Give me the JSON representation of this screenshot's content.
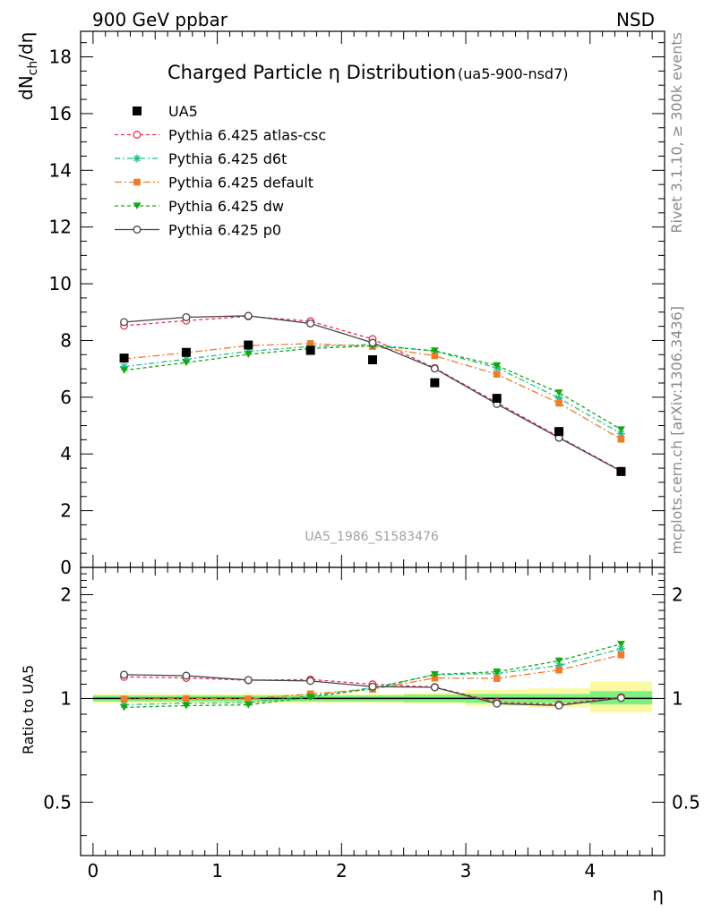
{
  "header": {
    "left": "900 GeV ppbar",
    "right": "NSD"
  },
  "side_text": {
    "top": "Rivet 3.1.10, ≥ 300k events",
    "bottom": "mcplots.cern.ch [arXiv:1306.3436]"
  },
  "watermark": "UA5_1986_S1583476",
  "chart_data": [
    {
      "type": "line",
      "title": "Charged Particle η Distribution",
      "subtitle": "(ua5-900-nsd7)",
      "ylabel_main": "dN",
      "ylabel_sub": "ch",
      "ylabel_tail": "/dη",
      "xlim": [
        -0.1,
        4.6
      ],
      "ylim": [
        0,
        18.9
      ],
      "y_ticks": [
        0,
        2,
        4,
        6,
        8,
        10,
        12,
        14,
        16,
        18
      ],
      "x": [
        0.25,
        0.75,
        1.25,
        1.75,
        2.25,
        2.75,
        3.25,
        3.75,
        4.25
      ],
      "legend_position": "top-left",
      "series": [
        {
          "name": "UA5",
          "color": "#000000",
          "marker": "square",
          "dash": "none",
          "values": [
            7.38,
            7.58,
            7.84,
            7.65,
            7.32,
            6.51,
            5.96,
            4.79,
            3.38
          ]
        },
        {
          "name": "Pythia 6.425 atlas-csc",
          "color": "#e8344e",
          "marker": "open-circle",
          "dash": "4,3",
          "values": [
            8.52,
            8.7,
            8.85,
            8.68,
            8.05,
            7.03,
            5.81,
            4.6,
            3.41
          ]
        },
        {
          "name": "Pythia 6.425 d6t",
          "color": "#1fbf8f",
          "marker": "star",
          "dash": "6,3,2,3",
          "values": [
            7.08,
            7.34,
            7.62,
            7.79,
            7.86,
            7.62,
            7.04,
            5.97,
            4.71
          ]
        },
        {
          "name": "Pythia 6.425 default",
          "color": "#f07b2a",
          "marker": "filled-square",
          "dash": "8,3,2,3",
          "values": [
            7.35,
            7.57,
            7.82,
            7.89,
            7.79,
            7.46,
            6.81,
            5.79,
            4.52
          ]
        },
        {
          "name": "Pythia 6.425 dw",
          "color": "#13a813",
          "marker": "triangle-down",
          "dash": "4,3",
          "values": [
            6.95,
            7.22,
            7.51,
            7.72,
            7.81,
            7.64,
            7.12,
            6.16,
            4.86
          ]
        },
        {
          "name": "Pythia 6.425 p0",
          "color": "#444444",
          "marker": "open-circle",
          "dash": "none",
          "values": [
            8.65,
            8.82,
            8.87,
            8.6,
            7.92,
            7.01,
            5.76,
            4.57,
            3.39
          ]
        }
      ]
    },
    {
      "type": "line",
      "ylabel": "Ratio to UA5",
      "xlabel": "η",
      "xlim": [
        -0.1,
        4.6
      ],
      "ylim": [
        0.35,
        2.4
      ],
      "y_scale": "log",
      "x_ticks": [
        0,
        1,
        2,
        3,
        4
      ],
      "y_ticks": [
        0.5,
        1,
        2
      ],
      "bands": {
        "x_edges": [
          0.0,
          0.5,
          1.0,
          1.5,
          2.0,
          2.5,
          3.0,
          3.5,
          4.0,
          4.5
        ],
        "stat_low": [
          0.98,
          0.98,
          0.98,
          0.98,
          0.98,
          0.975,
          0.97,
          0.97,
          0.96
        ],
        "stat_high": [
          1.02,
          1.02,
          1.02,
          1.02,
          1.02,
          1.025,
          1.03,
          1.03,
          1.05
        ],
        "total_low": [
          0.97,
          0.97,
          0.97,
          0.97,
          0.97,
          0.965,
          0.95,
          0.94,
          0.91
        ],
        "total_high": [
          1.03,
          1.03,
          1.03,
          1.03,
          1.03,
          1.04,
          1.06,
          1.07,
          1.12
        ],
        "stat_color": "#7ef07e",
        "total_color": "#fbf9a4"
      },
      "series": [
        {
          "name": "Pythia 6.425 atlas-csc",
          "values": [
            1.155,
            1.147,
            1.129,
            1.135,
            1.099,
            1.079,
            0.975,
            0.961,
            1.009
          ]
        },
        {
          "name": "Pythia 6.425 d6t",
          "values": [
            0.959,
            0.968,
            0.972,
            1.018,
            1.074,
            1.171,
            1.181,
            1.246,
            1.394
          ]
        },
        {
          "name": "Pythia 6.425 default",
          "values": [
            0.996,
            0.999,
            0.997,
            1.031,
            1.064,
            1.146,
            1.143,
            1.209,
            1.337
          ]
        },
        {
          "name": "Pythia 6.425 dw",
          "values": [
            0.942,
            0.953,
            0.958,
            1.009,
            1.067,
            1.174,
            1.195,
            1.286,
            1.438
          ]
        },
        {
          "name": "Pythia 6.425 p0",
          "values": [
            1.172,
            1.164,
            1.131,
            1.124,
            1.082,
            1.077,
            0.966,
            0.954,
            1.003
          ]
        }
      ]
    }
  ]
}
